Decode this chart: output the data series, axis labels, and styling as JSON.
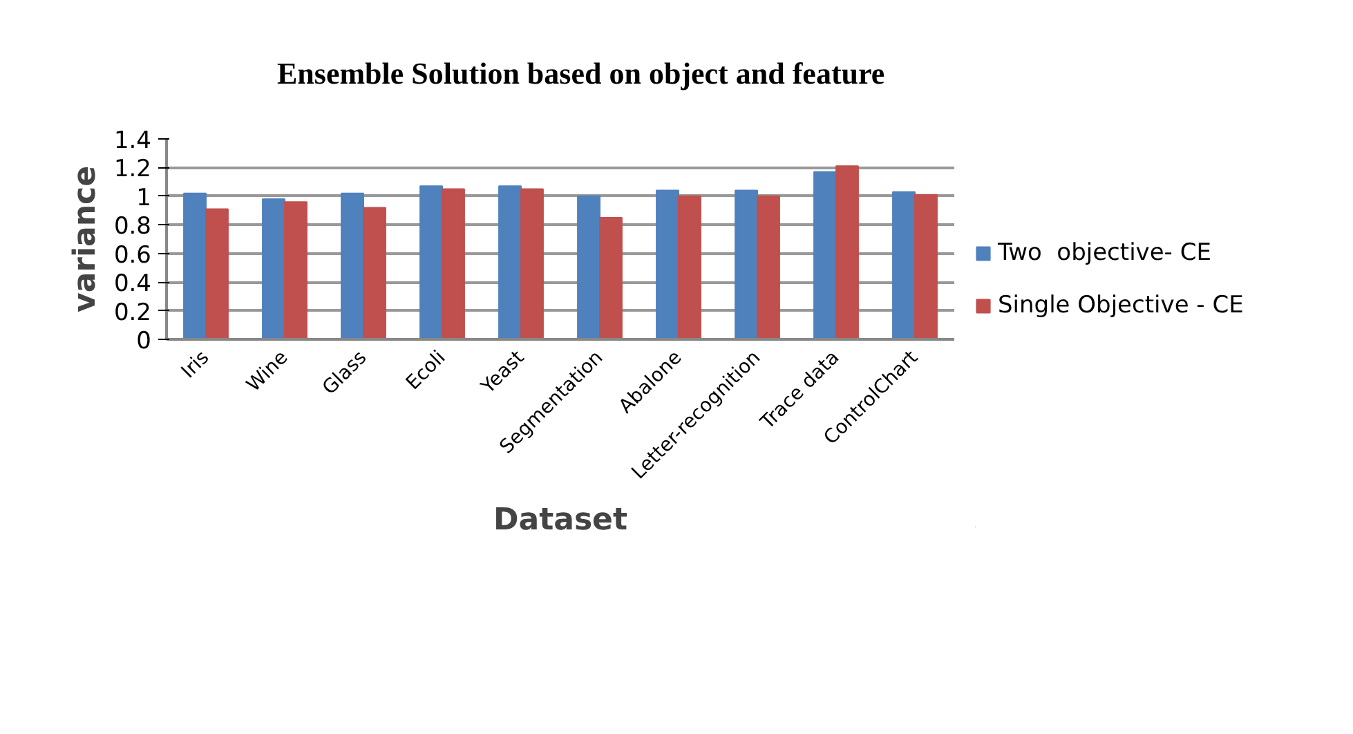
{
  "chart_data": {
    "type": "bar",
    "title": "Ensemble Solution based on object and feature",
    "xlabel": "Dataset",
    "ylabel": "variance",
    "categories": [
      "Iris",
      "Wine",
      "Glass",
      "Ecoli",
      "Yeast",
      "Segmentation",
      "Abalone",
      "Letter-recognition",
      "Trace data",
      "ControlChart"
    ],
    "series": [
      {
        "name": "Two  objective- CE",
        "color": "#4f81bd",
        "values": [
          1.02,
          0.98,
          1.02,
          1.07,
          1.07,
          1.0,
          1.04,
          1.04,
          1.17,
          1.03
        ]
      },
      {
        "name": "Single Objective - CE",
        "color": "#c0504d",
        "values": [
          0.91,
          0.96,
          0.92,
          1.05,
          1.05,
          0.85,
          1.0,
          1.0,
          1.21,
          1.01
        ]
      }
    ],
    "ylim": [
      0,
      1.4
    ],
    "yticks": [
      {
        "value": 0,
        "label": "0"
      },
      0.2,
      0.4,
      0.6,
      0.8,
      {
        "value": 1,
        "label": "1"
      },
      1.2,
      1.4
    ],
    "grid": "y",
    "legend": "right"
  }
}
